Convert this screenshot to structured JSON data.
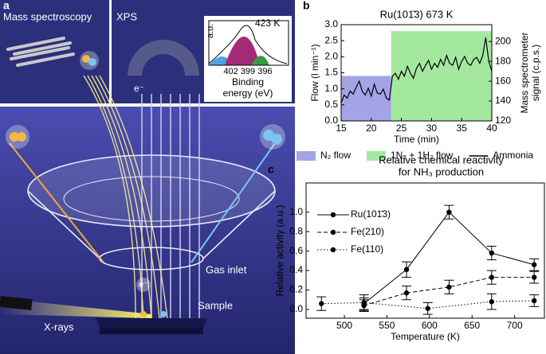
{
  "panel_a": {
    "panel": "a",
    "mass_spec": "Mass spectroscopy",
    "xps": "XPS",
    "inset_y": "a.u.",
    "inset_temp": "423 K",
    "inset_ticks": "402 399 396",
    "inset_xlabel": [
      "Binding",
      "energy (eV)"
    ],
    "electron_top": "e⁻",
    "electron_bottom": "e⁻",
    "gas_inlet": "Gas inlet",
    "sample": "Sample",
    "xrays": "X-rays"
  },
  "chart_data": [
    {
      "type": "line",
      "panel": "b",
      "title": "Ru(101̄3) 673 K",
      "xlabel": "Time (min)",
      "ylabel": "Flow (l min⁻¹)",
      "y2label": [
        "Mass spectrometer",
        "signal (c.p.s.)"
      ],
      "xlim": [
        15,
        40
      ],
      "xticks": [
        15,
        20,
        25,
        30,
        35,
        40
      ],
      "ylim": [
        0,
        3
      ],
      "yticks": [
        {
          "value": 0,
          "label": "0.0"
        },
        0.5,
        {
          "value": 1,
          "label": "1.0"
        },
        1.5,
        {
          "value": 2,
          "label": "2.0"
        },
        2.5,
        {
          "value": 3,
          "label": "3.0"
        }
      ],
      "y2lim": [
        120,
        217
      ],
      "y2ticks": [
        120,
        140,
        160,
        180,
        200
      ],
      "legend": "below",
      "series": [
        {
          "name": "N₂ flow",
          "style": "area",
          "color": "#a3a3e6",
          "x": [
            15,
            23.3
          ],
          "values": [
            1.4,
            1.4
          ]
        },
        {
          "name": "1N₂ + 1H₂ flow",
          "style": "area",
          "color": "#a4e8a0",
          "x": [
            23.3,
            40
          ],
          "values": [
            2.8,
            2.8
          ]
        },
        {
          "name": "Ammonia",
          "style": "line",
          "color": "#000000",
          "axis": "y2",
          "x": [
            15,
            15.5,
            16,
            16.5,
            17,
            17.5,
            18,
            18.5,
            19,
            19.5,
            20,
            20.5,
            21,
            21.5,
            22,
            22.5,
            23,
            23.5,
            24,
            24.5,
            25,
            25.5,
            26,
            26.5,
            27,
            27.5,
            28,
            28.5,
            29,
            29.5,
            30,
            30.5,
            31,
            31.5,
            32,
            32.5,
            33,
            33.5,
            34,
            34.5,
            35,
            35.5,
            36,
            36.5,
            37,
            37.5,
            38,
            38.5,
            39,
            39.5,
            40
          ],
          "values": [
            138,
            146,
            143,
            150,
            147,
            154,
            160,
            150,
            146,
            153,
            145,
            157,
            148,
            147,
            152,
            143,
            141,
            165,
            168,
            162,
            170,
            165,
            175,
            168,
            163,
            173,
            178,
            170,
            176,
            181,
            172,
            178,
            174,
            182,
            176,
            186,
            178,
            176,
            184,
            172,
            180,
            185,
            178,
            176,
            182,
            184,
            178,
            186,
            204,
            180,
            170
          ]
        }
      ]
    },
    {
      "type": "errorbar",
      "panel": "c",
      "title": [
        "Relative chemical reactivity",
        "for NH₃ production"
      ],
      "xlabel": "Temperature (K)",
      "ylabel": "Relative activity (a.u.)",
      "xlim": [
        455,
        735
      ],
      "xticks": [
        500,
        550,
        600,
        650,
        700
      ],
      "ylim": [
        -0.09,
        1.3
      ],
      "yticks": [
        {
          "value": 0,
          "label": "0.0"
        },
        0.2,
        0.4,
        0.6,
        0.8,
        {
          "value": 1,
          "label": "1.0"
        }
      ],
      "legend": "upper left",
      "series": [
        {
          "name": "Ru(101̄3)",
          "dash": "solid",
          "color": "#000000",
          "x": [
            523,
            573,
            623,
            673,
            723
          ],
          "values": [
            0.06,
            0.41,
            1.0,
            0.58,
            0.46
          ],
          "errors": [
            0.06,
            0.08,
            0.07,
            0.07,
            0.06
          ]
        },
        {
          "name": "Fe(210)",
          "dash": "dashed",
          "color": "#000000",
          "x": [
            523,
            573,
            623,
            673,
            723
          ],
          "values": [
            0.04,
            0.17,
            0.23,
            0.33,
            0.33
          ],
          "errors": [
            0.06,
            0.07,
            0.07,
            0.07,
            0.06
          ]
        },
        {
          "name": "Fe(110)",
          "dash": "dotted",
          "color": "#000000",
          "x": [
            473,
            523,
            598,
            673,
            723
          ],
          "values": [
            0.06,
            0.07,
            0.01,
            0.08,
            0.09
          ],
          "errors": [
            0.07,
            0.08,
            0.06,
            0.08,
            0.06
          ]
        }
      ]
    }
  ]
}
